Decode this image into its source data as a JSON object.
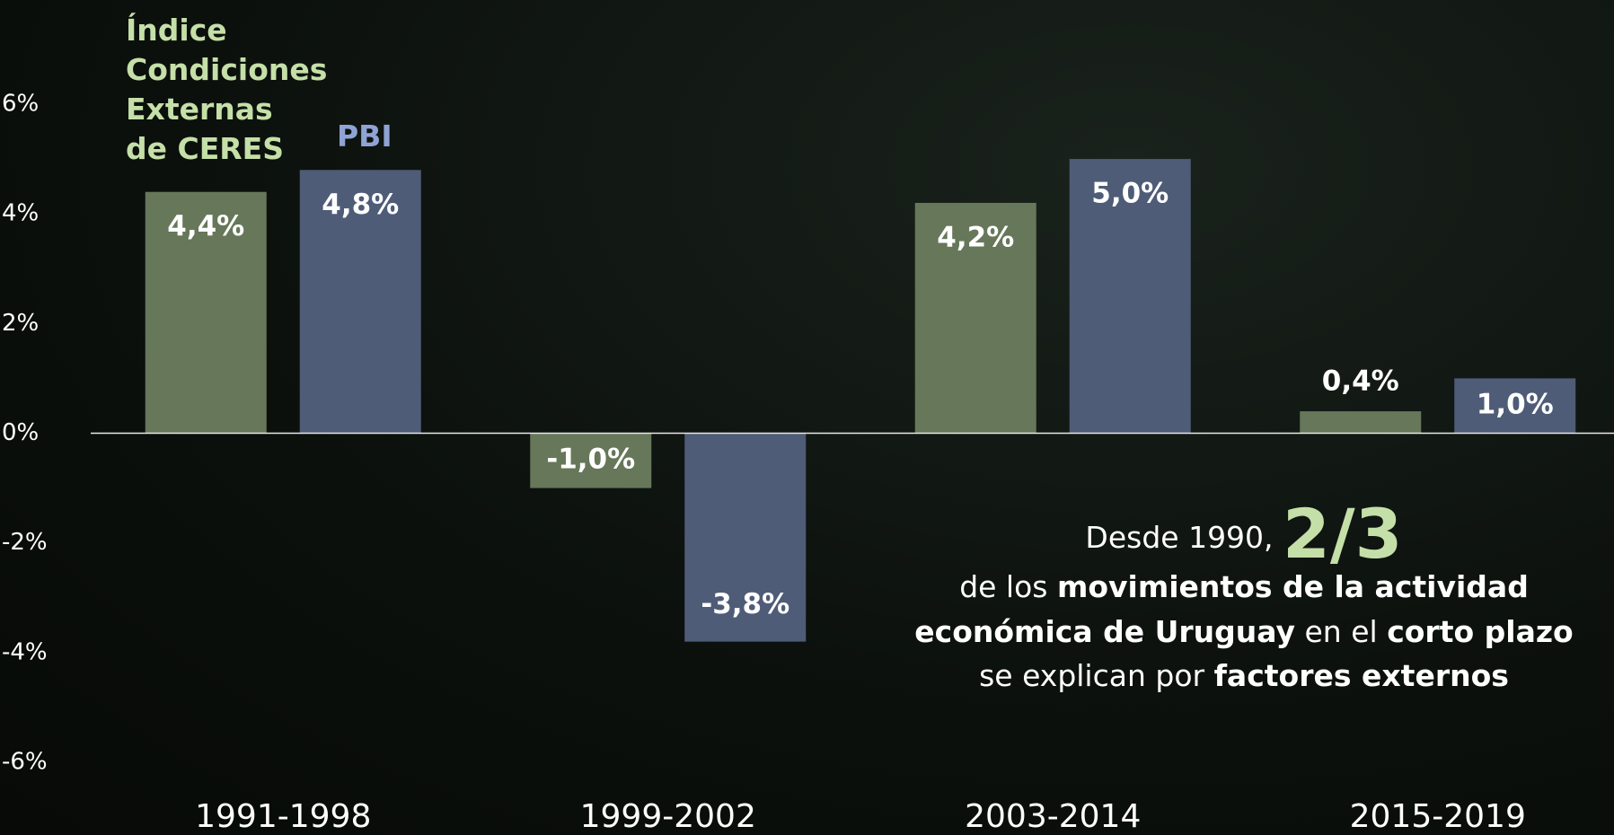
{
  "chart_data": {
    "type": "bar",
    "categories": [
      "1991-1998",
      "1999-2002",
      "2003-2014",
      "2015-2019"
    ],
    "series": [
      {
        "name": "Índice\nCondiciones\nExternas\nde CERES",
        "color": "#67775a",
        "legend_color": "#c5dfa8",
        "values": [
          4.4,
          -1.0,
          4.2,
          0.4
        ],
        "value_labels": [
          "4,4%",
          "-1,0%",
          "4,2%",
          "0,4%"
        ]
      },
      {
        "name": "PBI",
        "color": "#4f5c77",
        "legend_color": "#8fa3d4",
        "values": [
          4.8,
          -3.8,
          5.0,
          1.0
        ],
        "value_labels": [
          "4,8%",
          "-3,8%",
          "5,0%",
          "1,0%"
        ]
      }
    ],
    "ylim": [
      -6,
      6
    ],
    "yticks": [
      {
        "value": 6,
        "label": "6%"
      },
      {
        "value": 4,
        "label": "4%"
      },
      {
        "value": 2,
        "label": "2%"
      },
      {
        "value": 0,
        "label": "0%"
      },
      {
        "value": -2,
        "label": "-2%"
      },
      {
        "value": -4,
        "label": "-4%"
      },
      {
        "value": -6,
        "label": "-6%"
      }
    ],
    "annotation": {
      "line0": [
        "Desde 1990, ",
        "2/3"
      ],
      "line1": [
        "de los ",
        "movimientos de la actividad"
      ],
      "line2": [
        "económica de Uruguay",
        " en el ",
        "corto plazo"
      ],
      "line3": [
        "se explican por ",
        "factores externos"
      ]
    }
  }
}
